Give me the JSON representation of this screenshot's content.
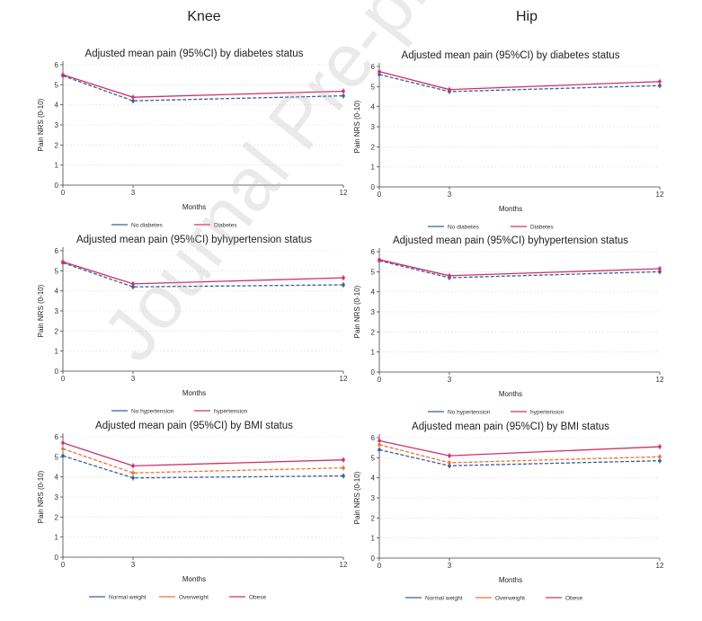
{
  "columns": {
    "knee": "Knee",
    "hip": "Hip"
  },
  "watermark": "Journal Pre-proof",
  "chart_data": [
    {
      "type": "line",
      "panel": "knee-diabetes",
      "title": "Adjusted mean pain (95%CI) by diabetes status",
      "xlabel": "Months",
      "ylabel": "Pain NRS (0-10)",
      "x": [
        0,
        3,
        12
      ],
      "xticks": [
        "0",
        "3",
        "12"
      ],
      "yticks": [
        "0",
        "1",
        "2",
        "3",
        "4",
        "5",
        "6"
      ],
      "ylim": [
        0,
        6
      ],
      "legend_position": "bottom",
      "series": [
        {
          "name": "No diabetes",
          "values": [
            5.45,
            4.2,
            4.45
          ],
          "color": "#3a5f9a",
          "dash": true
        },
        {
          "name": "Diabetes",
          "values": [
            5.5,
            4.38,
            4.68
          ],
          "color": "#d0306a",
          "dash": false
        }
      ]
    },
    {
      "type": "line",
      "panel": "hip-diabetes",
      "title": "Adjusted mean pain (95%CI) by diabetes status",
      "xlabel": "Months",
      "ylabel": "Pain NRS (0-10)",
      "x": [
        0,
        3,
        12
      ],
      "xticks": [
        "0",
        "3",
        "12"
      ],
      "yticks": [
        "0",
        "1",
        "2",
        "3",
        "4",
        "5",
        "6"
      ],
      "ylim": [
        0,
        6
      ],
      "legend_position": "bottom",
      "series": [
        {
          "name": "No diabetes",
          "values": [
            5.6,
            4.75,
            5.05
          ],
          "color": "#3a5f9a",
          "dash": true
        },
        {
          "name": "Diabetes",
          "values": [
            5.75,
            4.85,
            5.25
          ],
          "color": "#d0306a",
          "dash": false
        }
      ]
    },
    {
      "type": "line",
      "panel": "knee-hypertension",
      "title": "Adjusted mean pain (95%CI) byhypertension status",
      "xlabel": "Months",
      "ylabel": "Pain NRS (0-10)",
      "x": [
        0,
        3,
        12
      ],
      "xticks": [
        "0",
        "3",
        "12"
      ],
      "yticks": [
        "0",
        "1",
        "2",
        "3",
        "4",
        "5",
        "6"
      ],
      "ylim": [
        0,
        6
      ],
      "legend_position": "bottom",
      "series": [
        {
          "name": "No hypertension",
          "values": [
            5.4,
            4.2,
            4.3
          ],
          "color": "#3a5f9a",
          "dash": true
        },
        {
          "name": "hypertension",
          "values": [
            5.45,
            4.35,
            4.65
          ],
          "color": "#d0306a",
          "dash": false
        }
      ]
    },
    {
      "type": "line",
      "panel": "hip-hypertension",
      "title": "Adjusted mean pain (95%CI) byhypertension status",
      "xlabel": "Months",
      "ylabel": "Pain NRS (0-10)",
      "x": [
        0,
        3,
        12
      ],
      "xticks": [
        "0",
        "3",
        "12"
      ],
      "yticks": [
        "0",
        "1",
        "2",
        "3",
        "4",
        "5",
        "6"
      ],
      "ylim": [
        0,
        6
      ],
      "legend_position": "bottom",
      "series": [
        {
          "name": "No hypertension",
          "values": [
            5.55,
            4.7,
            5.0
          ],
          "color": "#3a5f9a",
          "dash": true
        },
        {
          "name": "hypertension",
          "values": [
            5.6,
            4.8,
            5.15
          ],
          "color": "#d0306a",
          "dash": false
        }
      ]
    },
    {
      "type": "line",
      "panel": "knee-bmi",
      "title": "Adjusted mean pain (95%CI) by BMI status",
      "xlabel": "Months",
      "ylabel": "Pain NRS (0-10)",
      "x": [
        0,
        3,
        12
      ],
      "xticks": [
        "0",
        "3",
        "12"
      ],
      "yticks": [
        "0",
        "1",
        "2",
        "3",
        "4",
        "5",
        "6"
      ],
      "ylim": [
        0,
        6
      ],
      "legend_position": "bottom",
      "series": [
        {
          "name": "Normal weight",
          "values": [
            5.05,
            3.95,
            4.05
          ],
          "color": "#3a5f9a",
          "dash": true
        },
        {
          "name": "Overweight",
          "values": [
            5.4,
            4.2,
            4.45
          ],
          "color": "#e8743b",
          "dash": true
        },
        {
          "name": "Obese",
          "values": [
            5.7,
            4.55,
            4.85
          ],
          "color": "#d0306a",
          "dash": false
        }
      ]
    },
    {
      "type": "line",
      "panel": "hip-bmi",
      "title": "Adjusted mean pain (95%CI) by BMI status",
      "xlabel": "Months",
      "ylabel": "Pain NRS (0-10)",
      "x": [
        0,
        3,
        12
      ],
      "xticks": [
        "0",
        "3",
        "12"
      ],
      "yticks": [
        "0",
        "1",
        "2",
        "3",
        "4",
        "5",
        "6"
      ],
      "ylim": [
        0,
        6
      ],
      "legend_position": "bottom",
      "series": [
        {
          "name": "Normal weight",
          "values": [
            5.4,
            4.6,
            4.85
          ],
          "color": "#3a5f9a",
          "dash": true
        },
        {
          "name": "Overweight",
          "values": [
            5.65,
            4.75,
            5.05
          ],
          "color": "#e8743b",
          "dash": true
        },
        {
          "name": "Obese",
          "values": [
            5.85,
            5.1,
            5.55
          ],
          "color": "#d0306a",
          "dash": false
        }
      ]
    }
  ]
}
